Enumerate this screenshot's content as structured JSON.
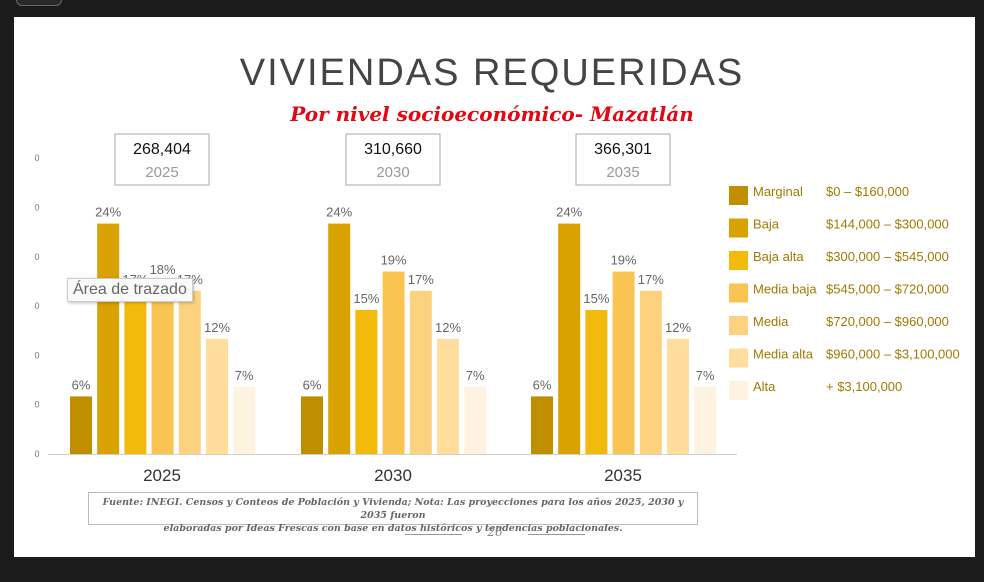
{
  "slide": {
    "title": "VIVIENDAS REQUERIDAS",
    "subtitle": "Por nivel socioeconómico- Mazatlán",
    "source_line1": "Fuente: INEGI. Censos y Conteos de Población y Vivienda; Nota: Las proyecciones para los años 2025, 2030 y 2035 fueron",
    "source_line2": "elaboradas por Ideas Frescas con base en datos históricos y tendencias poblacionales.",
    "page_number": "26",
    "tooltip": "Área de trazado"
  },
  "chart_data": {
    "type": "bar",
    "title": "VIVIENDAS REQUERIDAS",
    "subtitle": "Por nivel socioeconómico- Mazatlán",
    "categories": [
      "2025",
      "2030",
      "2035"
    ],
    "totals": [
      {
        "value": "268,404",
        "year": "2025"
      },
      {
        "value": "310,660",
        "year": "2030"
      },
      {
        "value": "366,301",
        "year": "2035"
      }
    ],
    "y_tick_labels": [
      "0",
      "0",
      "0",
      "0",
      "0",
      "0",
      "0"
    ],
    "ylim": [
      0,
      30
    ],
    "series": [
      {
        "name": "Marginal",
        "range": "$0 – $160,000",
        "color": "#bf8f00",
        "values": [
          6,
          6,
          6
        ]
      },
      {
        "name": "Baja",
        "range": "$144,000 – $300,000",
        "color": "#d8a200",
        "values": [
          24,
          24,
          24
        ]
      },
      {
        "name": "Baja alta",
        "range": "$300,000 – $545,000",
        "color": "#f2bb0b",
        "values": [
          17,
          15,
          15
        ]
      },
      {
        "name": "Media baja",
        "range": "$545,000 – $720,000",
        "color": "#fac453",
        "values": [
          18,
          19,
          19
        ]
      },
      {
        "name": "Media",
        "range": "$720,000 – $960,000",
        "color": "#fdd27f",
        "values": [
          17,
          17,
          17
        ]
      },
      {
        "name": "Media alta",
        "range": "$960,000 – $3,100,000",
        "color": "#fedd9d",
        "values": [
          12,
          12,
          12
        ]
      },
      {
        "name": "Alta",
        "range": "+ $3,100,000",
        "color": "#fdf3e0",
        "values": [
          7,
          7,
          7
        ]
      }
    ],
    "legend_position": "right"
  },
  "colors": {
    "legend_text": "#a07a00",
    "label_text": "#666666",
    "subtitle_red": "#e30613"
  }
}
